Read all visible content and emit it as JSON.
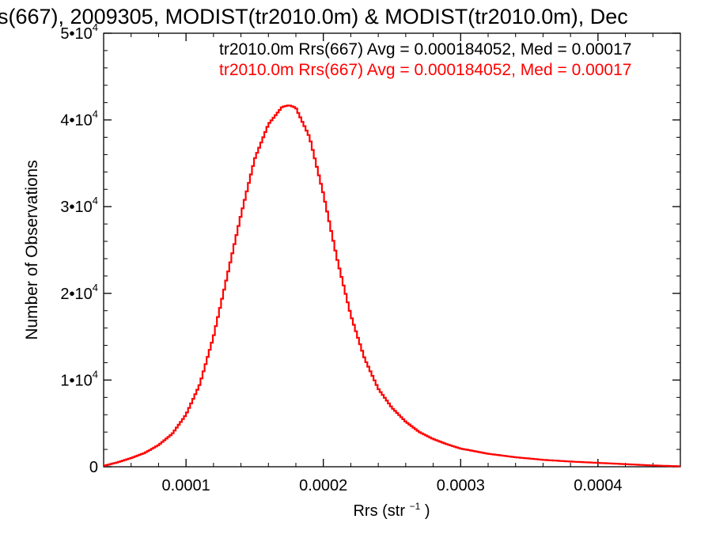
{
  "chart_data": {
    "type": "line",
    "title": "s(667), 2009305, MODIST(tr2010.0m) & MODIST(tr2010.0m), Dec",
    "xlabel_main": "Rrs (str",
    "xlabel_sup": "−1",
    "xlabel_end": ")",
    "ylabel": "Number of Observations",
    "xlim": [
      4e-05,
      0.00046
    ],
    "ylim": [
      0,
      50000
    ],
    "x_ticks": [
      {
        "value": 0.0001,
        "label": "0.0001"
      },
      {
        "value": 0.0002,
        "label": "0.0002"
      },
      {
        "value": 0.0003,
        "label": "0.0003"
      },
      {
        "value": 0.0004,
        "label": "0.0004"
      }
    ],
    "y_ticks": [
      {
        "value": 0,
        "base": "0",
        "exp": ""
      },
      {
        "value": 10000,
        "base": "1•10",
        "exp": "4"
      },
      {
        "value": 20000,
        "base": "2•10",
        "exp": "4"
      },
      {
        "value": 30000,
        "base": "3•10",
        "exp": "4"
      },
      {
        "value": 40000,
        "base": "4•10",
        "exp": "4"
      },
      {
        "value": 50000,
        "base": "5•10",
        "exp": "4"
      }
    ],
    "legend": [
      {
        "text": "tr2010.0m Rrs(667) Avg = 0.000184052, Med = 0.00017",
        "color": "#000000"
      },
      {
        "text": "tr2010.0m Rrs(667) Avg = 0.000184052, Med = 0.00017",
        "color": "#ff0000"
      }
    ],
    "legend_position": "top-right",
    "grid": false,
    "series": [
      {
        "color": "#ff0000",
        "x": [
          4e-05,
          5e-05,
          6e-05,
          7e-05,
          8e-05,
          9e-05,
          0.0001,
          0.00011,
          0.00012,
          0.00013,
          0.00014,
          0.00015,
          0.00016,
          0.00017,
          0.000175,
          0.00018,
          0.00019,
          0.0002,
          0.00021,
          0.00022,
          0.00023,
          0.00024,
          0.00025,
          0.00026,
          0.00027,
          0.00028,
          0.00029,
          0.0003,
          0.00032,
          0.00034,
          0.00036,
          0.00038,
          0.0004,
          0.00042,
          0.00044,
          0.00046
        ],
        "y": [
          100,
          500,
          1000,
          1600,
          2500,
          3800,
          6000,
          9500,
          15000,
          22000,
          29000,
          35500,
          39500,
          41500,
          41700,
          41400,
          38000,
          31500,
          24000,
          17500,
          12500,
          9000,
          6800,
          5200,
          4000,
          3200,
          2600,
          2100,
          1500,
          1100,
          800,
          600,
          450,
          300,
          150,
          50
        ]
      }
    ]
  }
}
